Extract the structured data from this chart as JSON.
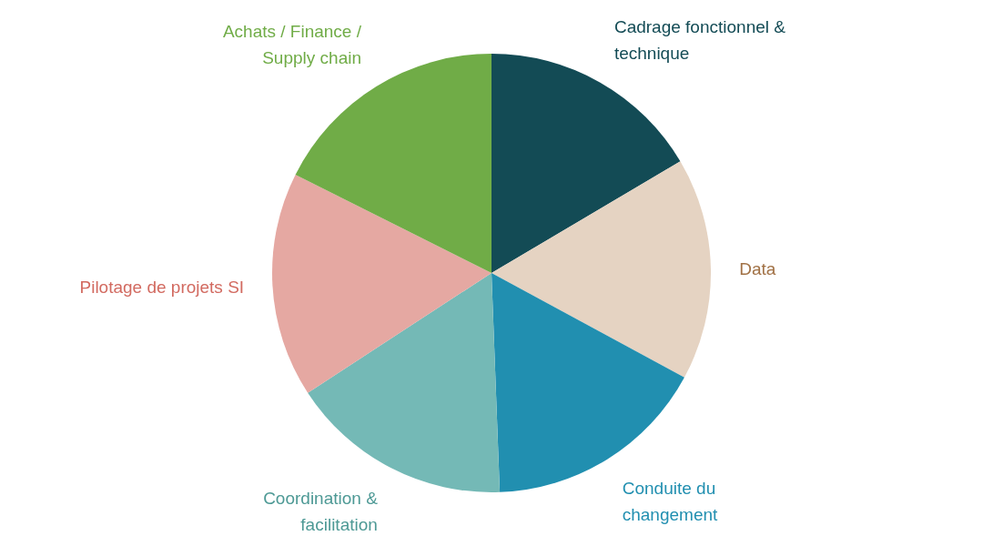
{
  "chart_data": {
    "type": "pie",
    "categories": [
      "Cadrage fonctionnel & technique",
      "Data",
      "Conduite du changement",
      "Coordination & facilitation",
      "Pilotage de projets SI",
      "Achats / Finance / Supply chain"
    ],
    "values": [
      16.5,
      16.4,
      16.5,
      16.4,
      16.6,
      17.6
    ],
    "colors": [
      "#134b55",
      "#e5d3c2",
      "#218fb0",
      "#74b9b6",
      "#e5a8a2",
      "#70ac47"
    ],
    "legend": false
  }
}
